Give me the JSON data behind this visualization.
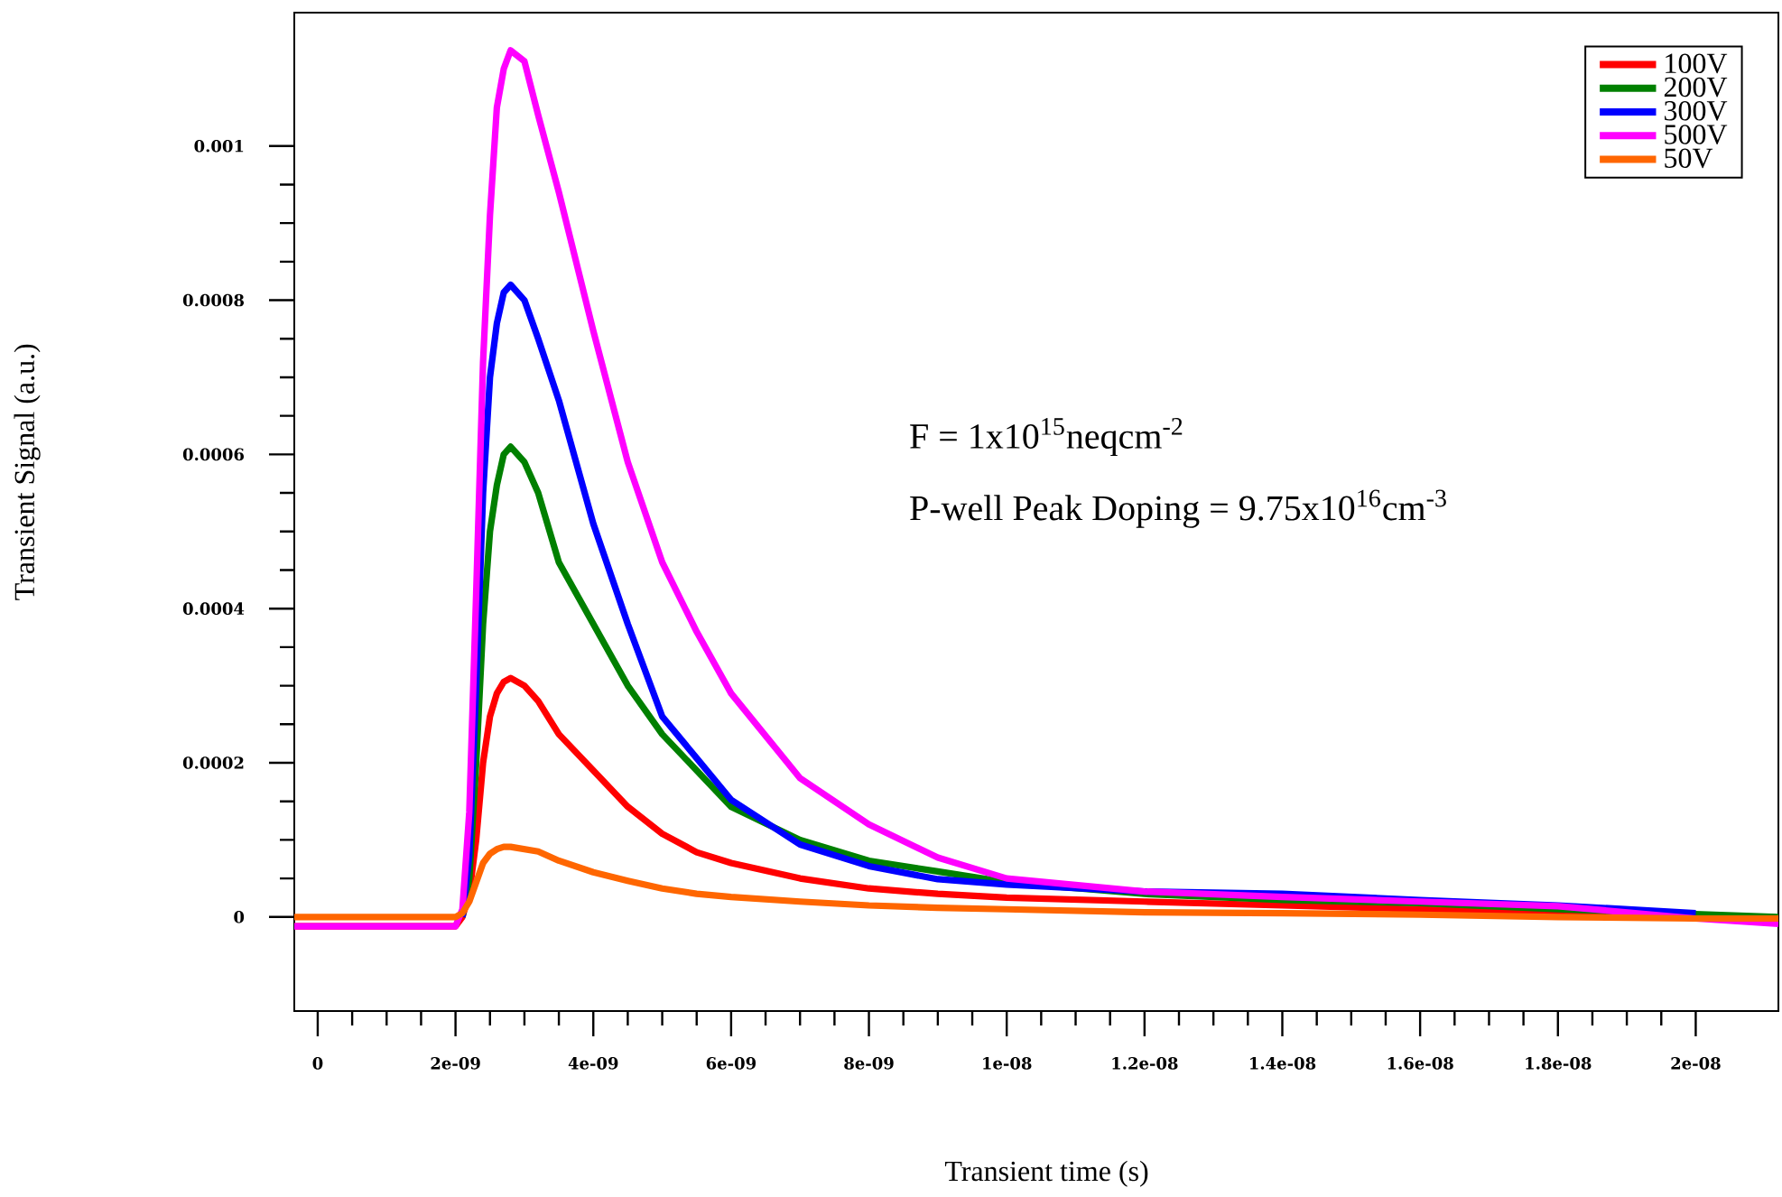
{
  "chart_data": {
    "type": "line",
    "xlabel": "Transient time (s)",
    "ylabel": "Transient Signal (a.u.)",
    "annotations": [
      "F = 1x10$^{15}$neqcm$^{-2}$",
      "P-well Peak Doping  = 9.75x10$^{16}$cm$^{-3}$"
    ],
    "x": [
      -3.4e-10,
      2e-09,
      2.1e-09,
      2.2e-09,
      2.3e-09,
      2.4e-09,
      2.5e-09,
      2.6e-09,
      2.7e-09,
      2.8e-09,
      3e-09,
      3.2e-09,
      3.5e-09,
      4e-09,
      4.5e-09,
      5e-09,
      5.5e-09,
      6e-09,
      7e-09,
      8e-09,
      9e-09,
      1e-08,
      1.2e-08,
      1.4e-08,
      1.6e-08,
      1.8e-08,
      2e-08,
      2.12e-08
    ],
    "series": [
      {
        "name": "100V",
        "color": "#ff0000",
        "values": [
          -1.2e-05,
          -1.2e-05,
          0,
          3e-05,
          0.0001,
          0.0002,
          0.00026,
          0.00029,
          0.000305,
          0.00031,
          0.0003,
          0.00028,
          0.000237,
          0.00019,
          0.000143,
          0.000108,
          8.4e-05,
          7e-05,
          5e-05,
          3.7e-05,
          3e-05,
          2.5e-05,
          2e-05,
          1.5e-05,
          1e-05,
          5e-06,
          0,
          -5e-06
        ]
      },
      {
        "name": "200V",
        "color": "#008000",
        "values": [
          null,
          null,
          0,
          5e-05,
          0.0002,
          0.00038,
          0.0005,
          0.00056,
          0.0006,
          0.00061,
          0.00059,
          0.00055,
          0.00046,
          0.00038,
          0.0003,
          0.000237,
          0.00019,
          0.000143,
          0.0001,
          7.3e-05,
          5.9e-05,
          4.5e-05,
          3e-05,
          2.2e-05,
          1.8e-05,
          1e-05,
          null,
          0
        ]
      },
      {
        "name": "300V",
        "color": "#0000ff",
        "values": [
          null,
          null,
          0,
          8e-05,
          0.0003,
          0.00055,
          0.0007,
          0.00077,
          0.00081,
          0.00082,
          0.0008,
          0.00075,
          0.00067,
          0.00051,
          0.00038,
          0.00026,
          0.000206,
          0.000152,
          9.4e-05,
          6.6e-05,
          4.9e-05,
          4.2e-05,
          3.3e-05,
          3e-05,
          2.2e-05,
          1.5e-05,
          5e-06,
          null
        ]
      },
      {
        "name": "500V",
        "color": "#ff00ff",
        "values": [
          -1.2e-05,
          -1.2e-05,
          1e-05,
          0.000136,
          0.00042,
          0.00072,
          0.00091,
          0.00105,
          0.0011,
          0.001124,
          0.00111,
          0.00104,
          0.00094,
          0.00076,
          0.00059,
          0.00046,
          0.00037,
          0.00029,
          0.00018,
          0.00012,
          7.7e-05,
          5e-05,
          3.3e-05,
          2.6e-05,
          2e-05,
          1.4e-05,
          -2e-06,
          -9e-06
        ]
      },
      {
        "name": "50V",
        "color": "#ff6600",
        "values": [
          0,
          0,
          5e-06,
          2e-05,
          4.5e-05,
          7e-05,
          8.2e-05,
          8.8e-05,
          9.1e-05,
          9.1e-05,
          8.8e-05,
          8.5e-05,
          7.3e-05,
          5.8e-05,
          4.7e-05,
          3.7e-05,
          3e-05,
          2.6e-05,
          2e-05,
          1.5e-05,
          1.2e-05,
          1e-05,
          6e-06,
          5e-06,
          3e-06,
          0,
          -2e-06,
          -2e-06
        ]
      }
    ],
    "xlim": [
      -3.4e-10,
      2.12e-08
    ],
    "xticks": [
      0,
      {
        "value": 2e-09,
        "label": "2e-09"
      },
      {
        "value": 4e-09,
        "label": "4e-09"
      },
      {
        "value": 6e-09,
        "label": "6e-09"
      },
      {
        "value": 8e-09,
        "label": "8e-09"
      },
      {
        "value": 1e-08,
        "label": "1e-08"
      },
      {
        "value": 1.2e-08,
        "label": "1.2e-08"
      },
      {
        "value": 1.4e-08,
        "label": "1.4e-08"
      },
      {
        "value": 1.6e-08,
        "label": "1.6e-08"
      },
      {
        "value": 1.8e-08,
        "label": "1.8e-08"
      },
      {
        "value": 2e-08,
        "label": "2e-08"
      }
    ],
    "ylim": [
      -0.000122,
      0.001173
    ],
    "yticks": [
      0,
      0.0002,
      0.0004,
      0.0006,
      0.0008,
      0.001
    ],
    "legend": "top right"
  }
}
